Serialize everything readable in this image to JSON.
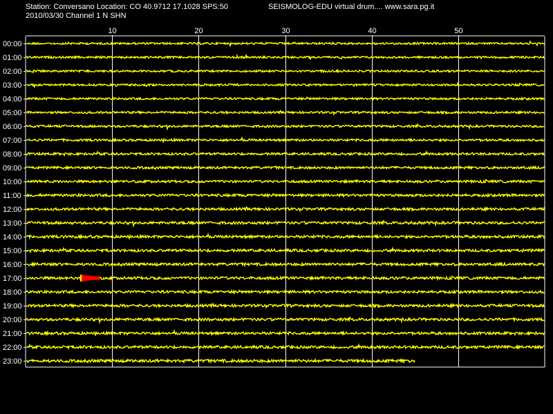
{
  "header": {
    "station_line": "Station: Conversano Location: CO 40.9712 17.1028 SPS:50",
    "date_line": "2010/03/30  Channel 1 N SHN",
    "app_line": "SEISMOLOG-EDU virtual drum.... www.sara.pg.it"
  },
  "colors": {
    "background": "#000000",
    "trace": "#ffff00",
    "event": "#ff0000",
    "grid": "#ffffff",
    "text": "#ffffff"
  },
  "chart_data": {
    "type": "line",
    "title": "",
    "xlabel": "",
    "ylabel": "",
    "xlim": [
      0,
      60
    ],
    "x_ticks": [
      10,
      20,
      30,
      40,
      50
    ],
    "grid": true,
    "hours": [
      "00:00",
      "01:00",
      "02:00",
      "03:00",
      "04:00",
      "05:00",
      "06:00",
      "07:00",
      "08:00",
      "09:00",
      "10:00",
      "11:00",
      "12:00",
      "13:00",
      "14:00",
      "15:00",
      "16:00",
      "17:00",
      "18:00",
      "19:00",
      "20:00",
      "21:00",
      "22:00",
      "23:00"
    ],
    "trace_end_minute": [
      60,
      60,
      60,
      60,
      60,
      60,
      60,
      60,
      60,
      60,
      60,
      60,
      60,
      60,
      60,
      60,
      60,
      60,
      60,
      60,
      60,
      60,
      60,
      45
    ],
    "noise_level": [
      0.3,
      0.3,
      0.3,
      0.3,
      0.35,
      0.35,
      0.4,
      0.4,
      0.45,
      0.45,
      0.5,
      0.55,
      0.55,
      0.6,
      0.6,
      0.6,
      0.6,
      0.6,
      0.6,
      0.6,
      0.6,
      0.6,
      0.6,
      0.7
    ],
    "events": [
      {
        "hour": "17:00",
        "start_minute": 6.4,
        "end_minute": 8.6,
        "amplitude": 1.0
      }
    ]
  }
}
